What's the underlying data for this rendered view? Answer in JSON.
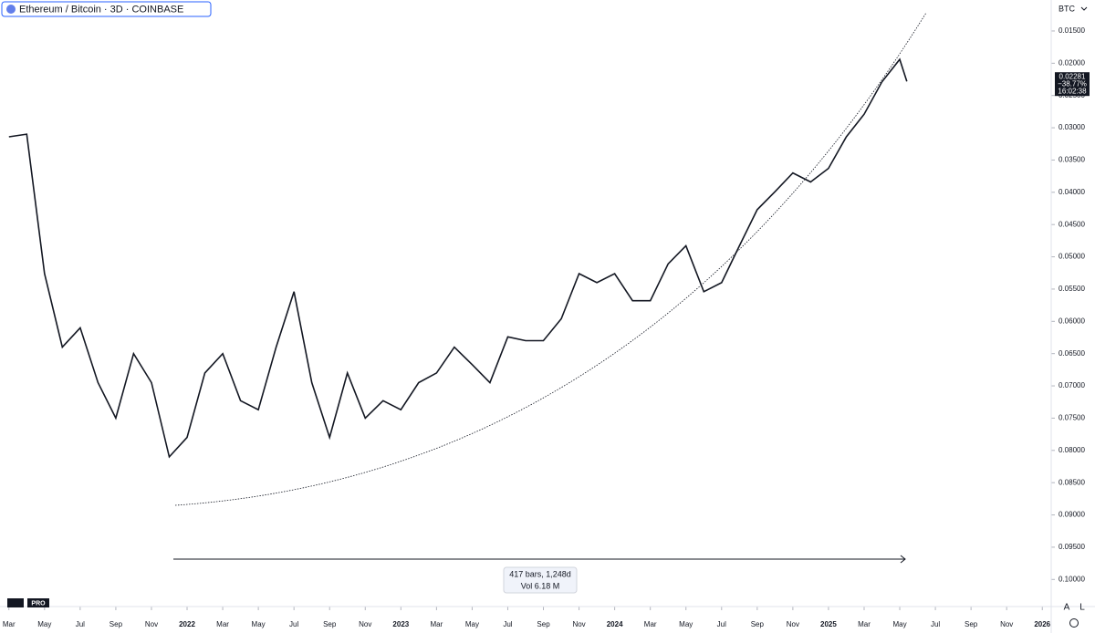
{
  "ui": {
    "symbol": "Ethereum / Bitcoin · 3D · COINBASE",
    "currency": "BTC",
    "price_tag": [
      "0.02281",
      "−38.77%",
      "16:02:38"
    ],
    "measure": [
      "417 bars, 1,248d",
      "Vol 6.18 M"
    ],
    "logo": "PRO",
    "buttons": [
      "A",
      "L"
    ]
  },
  "chart_data": {
    "type": "line",
    "color": "#131722",
    "x": [
      0,
      1,
      2,
      3,
      4,
      5,
      6,
      7,
      8,
      9,
      10,
      11,
      12,
      13,
      14,
      15,
      16,
      17,
      18,
      19,
      20,
      21,
      22,
      23,
      24,
      25,
      26,
      27,
      28,
      29,
      30,
      31,
      32,
      33,
      34,
      35,
      36,
      37,
      38,
      39,
      40,
      41,
      42,
      43,
      44,
      45,
      46,
      47,
      48,
      49,
      50,
      50.4
    ],
    "values": [
      0.0314,
      0.031,
      0.0526,
      0.064,
      0.061,
      0.0695,
      0.075,
      0.065,
      0.0695,
      0.081,
      0.078,
      0.068,
      0.065,
      0.0723,
      0.0737,
      0.064,
      0.0554,
      0.0695,
      0.078,
      0.068,
      0.075,
      0.0723,
      0.0737,
      0.0695,
      0.068,
      0.064,
      0.0667,
      0.0695,
      0.0624,
      0.063,
      0.063,
      0.0596,
      0.0526,
      0.054,
      0.0526,
      0.0568,
      0.0568,
      0.0511,
      0.0483,
      0.0554,
      0.054,
      0.0483,
      0.0427,
      0.0399,
      0.037,
      0.0384,
      0.0363,
      0.0314,
      0.0279,
      0.0229,
      0.0194,
      0.02281
    ],
    "xlim": [
      -0.5,
      58.5
    ],
    "xticks": [
      {
        "value": 0,
        "label": "Mar"
      },
      {
        "value": 2,
        "label": "May"
      },
      {
        "value": 4,
        "label": "Jul"
      },
      {
        "value": 6,
        "label": "Sep"
      },
      {
        "value": 8,
        "label": "Nov"
      },
      {
        "value": 10,
        "label": "2022"
      },
      {
        "value": 12,
        "label": "Mar"
      },
      {
        "value": 14,
        "label": "May"
      },
      {
        "value": 16,
        "label": "Jul"
      },
      {
        "value": 18,
        "label": "Sep"
      },
      {
        "value": 20,
        "label": "Nov"
      },
      {
        "value": 22,
        "label": "2023"
      },
      {
        "value": 24,
        "label": "Mar"
      },
      {
        "value": 26,
        "label": "May"
      },
      {
        "value": 28,
        "label": "Jul"
      },
      {
        "value": 30,
        "label": "Sep"
      },
      {
        "value": 32,
        "label": "Nov"
      },
      {
        "value": 34,
        "label": "2024"
      },
      {
        "value": 36,
        "label": "Mar"
      },
      {
        "value": 38,
        "label": "May"
      },
      {
        "value": 40,
        "label": "Jul"
      },
      {
        "value": 42,
        "label": "Sep"
      },
      {
        "value": 44,
        "label": "Nov"
      },
      {
        "value": 46,
        "label": "2025"
      },
      {
        "value": 48,
        "label": "Mar"
      },
      {
        "value": 50,
        "label": "May"
      },
      {
        "value": 52,
        "label": "Jul"
      },
      {
        "value": 54,
        "label": "Sep"
      },
      {
        "value": 56,
        "label": "Nov"
      },
      {
        "value": 58,
        "label": "2026"
      }
    ],
    "ylim": [
      0.1042,
      0.0102
    ],
    "yticks": [
      {
        "value": 0.015,
        "label": "0.01500"
      },
      {
        "value": 0.02,
        "label": "0.02000"
      },
      {
        "value": 0.025,
        "label": "0.02500"
      },
      {
        "value": 0.03,
        "label": "0.03000"
      },
      {
        "value": 0.035,
        "label": "0.03500"
      },
      {
        "value": 0.04,
        "label": "0.04000"
      },
      {
        "value": 0.045,
        "label": "0.04500"
      },
      {
        "value": 0.05,
        "label": "0.05000"
      },
      {
        "value": 0.055,
        "label": "0.05500"
      },
      {
        "value": 0.06,
        "label": "0.06000"
      },
      {
        "value": 0.065,
        "label": "0.06500"
      },
      {
        "value": 0.07,
        "label": "0.07000"
      },
      {
        "value": 0.075,
        "label": "0.07500"
      },
      {
        "value": 0.08,
        "label": "0.08000"
      },
      {
        "value": 0.085,
        "label": "0.08500"
      },
      {
        "value": 0.09,
        "label": "0.09000"
      },
      {
        "value": 0.095,
        "label": "0.09500"
      },
      {
        "value": 0.1,
        "label": "0.10000"
      }
    ]
  }
}
